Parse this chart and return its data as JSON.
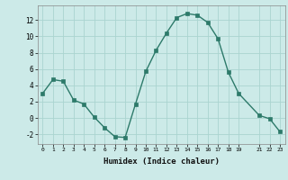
{
  "x": [
    0,
    1,
    2,
    3,
    4,
    5,
    6,
    7,
    8,
    9,
    10,
    11,
    12,
    13,
    14,
    15,
    16,
    17,
    18,
    19,
    21,
    22,
    23
  ],
  "y": [
    3,
    4.7,
    4.5,
    2.2,
    1.7,
    0.1,
    -1.2,
    -2.3,
    -2.4,
    1.7,
    5.7,
    8.3,
    10.4,
    12.3,
    12.8,
    12.6,
    11.7,
    9.7,
    5.6,
    3.0,
    0.3,
    -0.1,
    -1.7
  ],
  "line_color": "#2d7a6a",
  "marker_color": "#2d7a6a",
  "bg_color": "#cceae8",
  "grid_color": "#aad4d0",
  "xlabel": "Humidex (Indice chaleur)",
  "xticks": [
    0,
    1,
    2,
    3,
    4,
    5,
    6,
    7,
    8,
    9,
    10,
    11,
    12,
    13,
    14,
    15,
    16,
    17,
    18,
    19,
    21,
    22,
    23
  ],
  "yticks": [
    -2,
    0,
    2,
    4,
    6,
    8,
    10,
    12
  ],
  "ylim": [
    -3.2,
    13.8
  ],
  "xlim": [
    -0.5,
    23.5
  ]
}
